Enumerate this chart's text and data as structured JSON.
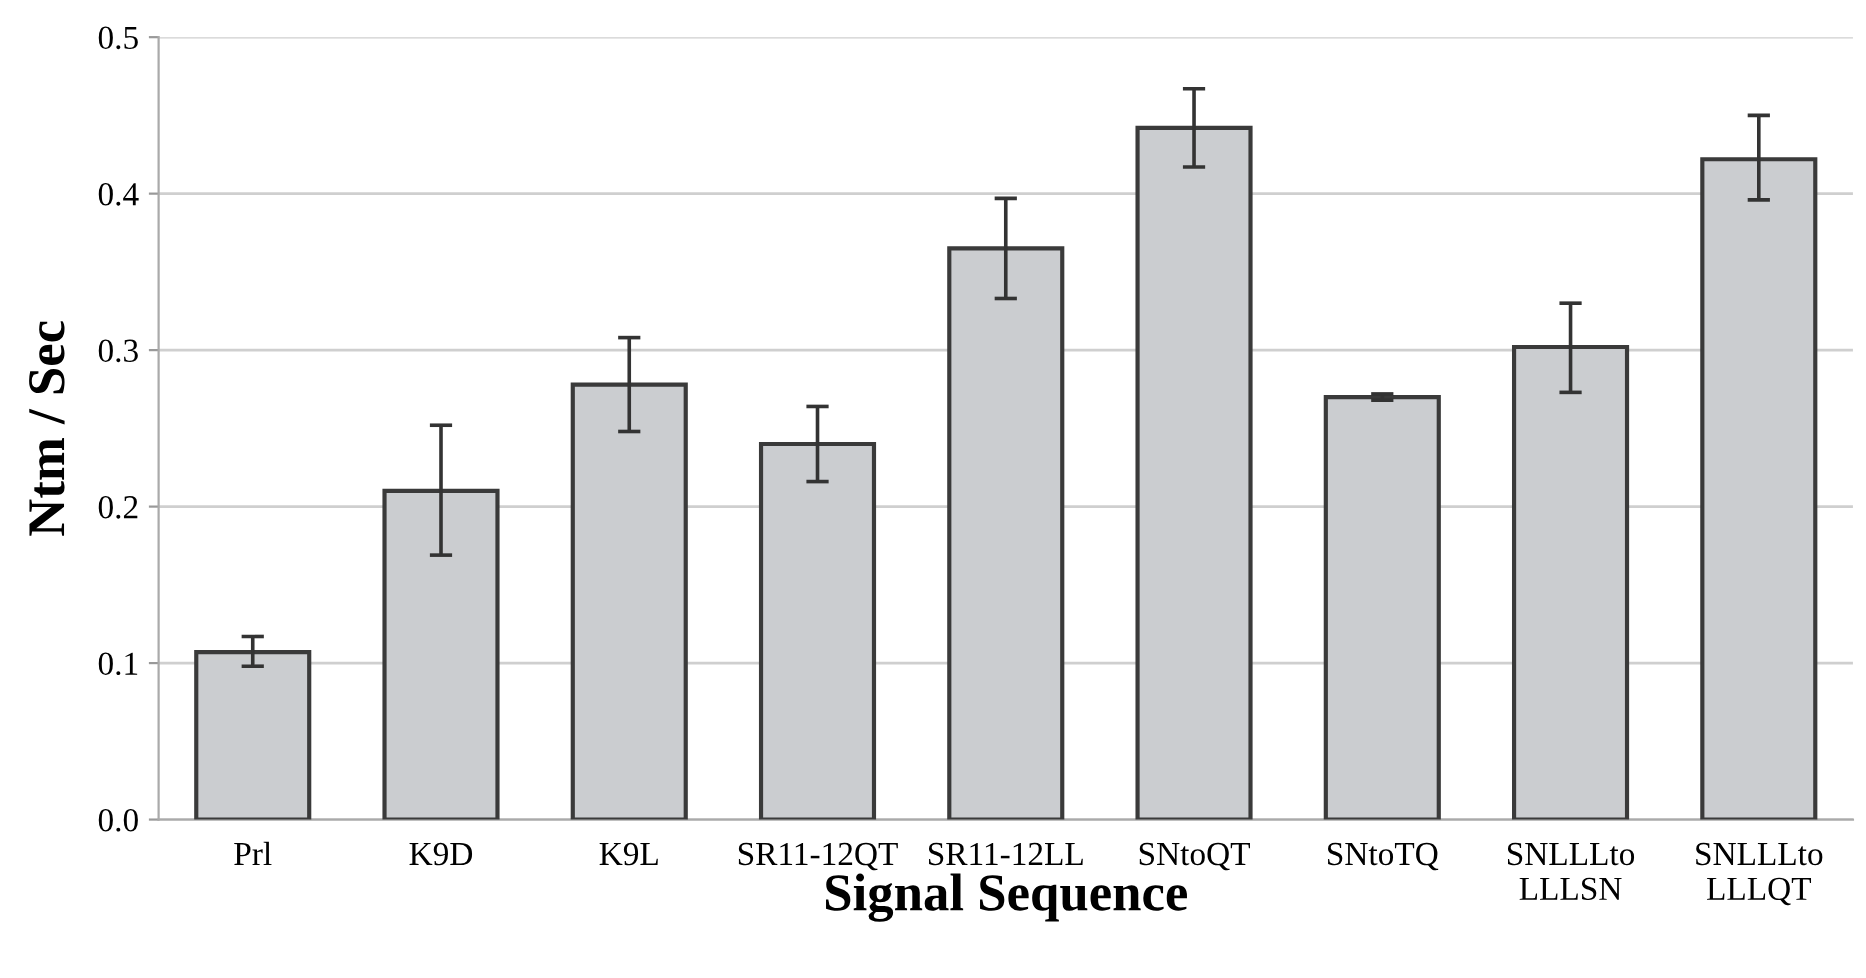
{
  "chart_data": {
    "type": "bar",
    "xlabel": "Signal Sequence",
    "ylabel": "Ntm / Sec",
    "categories": [
      "Prl",
      "K9D",
      "K9L",
      "SR11-12QT",
      "SR11-12LL",
      "SNtoQT",
      "SNtoTQ",
      "SNLLLto\nLLLSN",
      "SNLLLto\nLLLQT"
    ],
    "values": [
      0.107,
      0.21,
      0.278,
      0.24,
      0.365,
      0.442,
      0.27,
      0.302,
      0.422
    ],
    "errors": [
      [
        0.098,
        0.117
      ],
      [
        0.169,
        0.252
      ],
      [
        0.248,
        0.308
      ],
      [
        0.216,
        0.264
      ],
      [
        0.333,
        0.397
      ],
      [
        0.417,
        0.467
      ],
      [
        0.268,
        0.272
      ],
      [
        0.273,
        0.33
      ],
      [
        0.396,
        0.45
      ]
    ],
    "color": "#cbcdd0",
    "ylim": [
      0,
      0.5
    ],
    "yticks": [
      {
        "value": 0,
        "label": "0.0"
      },
      0.1,
      0.2,
      0.3,
      0.4,
      0.5
    ],
    "grid": "y"
  }
}
